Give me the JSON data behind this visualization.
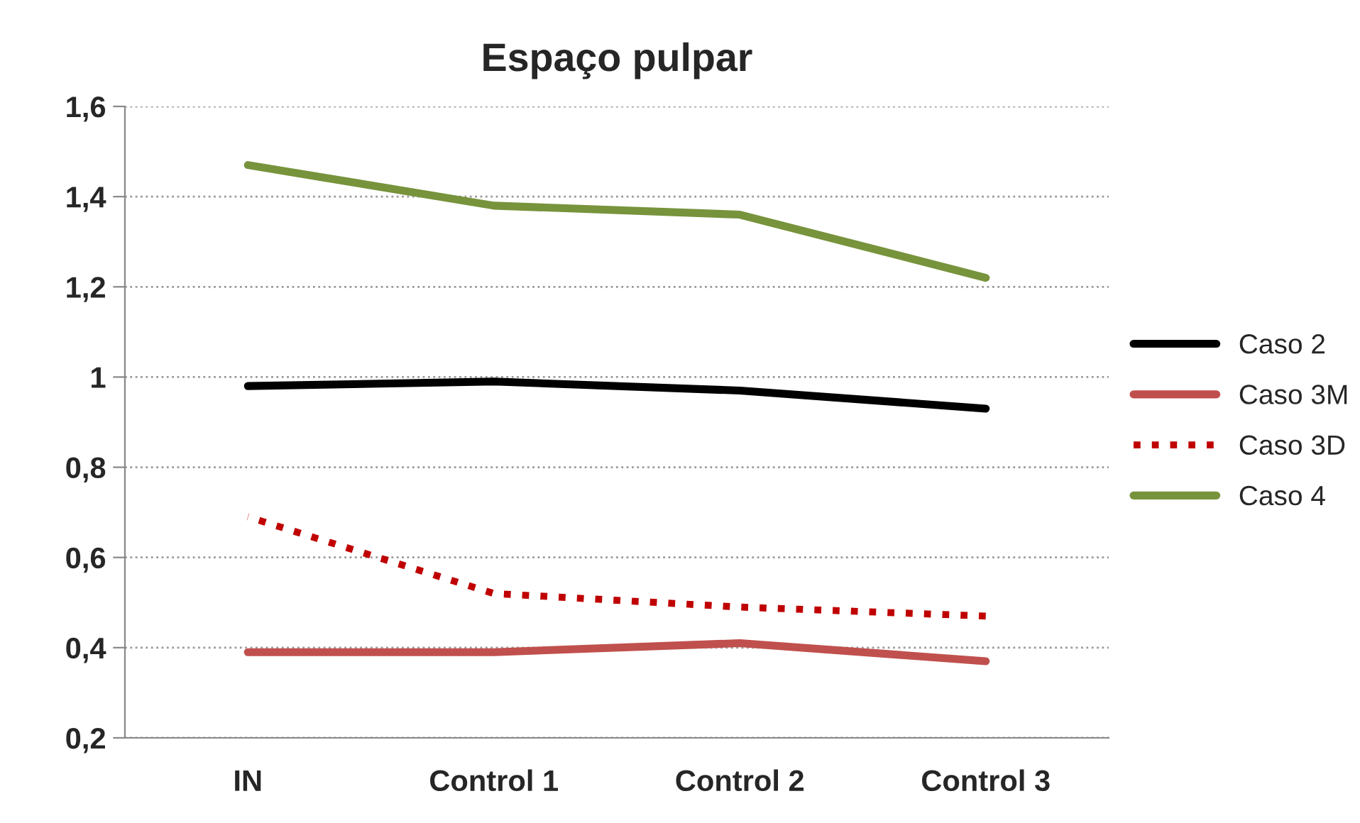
{
  "chart_data": {
    "type": "line",
    "title": "Espaço pulpar",
    "categories": [
      "IN",
      "Control 1",
      "Control 2",
      "Control 3"
    ],
    "series": [
      {
        "name": "Caso 2",
        "color": "#000000",
        "values": [
          0.98,
          0.99,
          0.97,
          0.93
        ],
        "line_style": "solid"
      },
      {
        "name": "Caso 3M",
        "color": "#c0504d",
        "values": [
          0.39,
          0.39,
          0.41,
          0.37
        ],
        "line_style": "solid"
      },
      {
        "name": "Caso 3D",
        "color": "#c00000",
        "values": [
          0.69,
          0.52,
          0.49,
          0.47
        ],
        "line_style": "dotted"
      },
      {
        "name": "Caso 4",
        "color": "#77933c",
        "values": [
          1.47,
          1.38,
          1.36,
          1.22
        ],
        "line_style": "solid"
      }
    ],
    "ylim": [
      0.2,
      1.6
    ],
    "yticks": [
      {
        "value": 0.2,
        "label": "0,2"
      },
      {
        "value": 0.4,
        "label": "0,4"
      },
      {
        "value": 0.6,
        "label": "0,6"
      },
      {
        "value": 0.8,
        "label": "0,8"
      },
      {
        "value": 1,
        "label": "1"
      },
      {
        "value": 1.2,
        "label": "1,2"
      },
      {
        "value": 1.4,
        "label": "1,4"
      },
      {
        "value": 1.6,
        "label": "1,6"
      }
    ],
    "grid": "y",
    "legend": "right",
    "marker": "none"
  }
}
